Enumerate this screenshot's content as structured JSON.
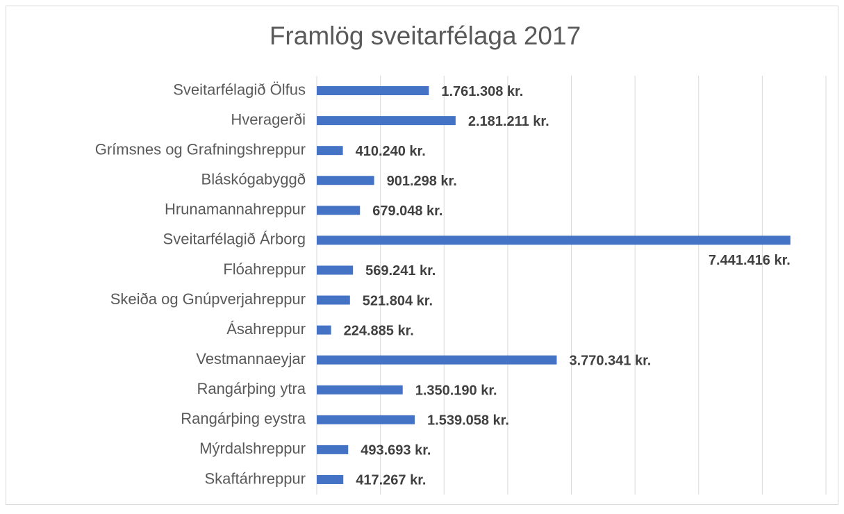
{
  "chart_data": {
    "type": "bar",
    "orientation": "horizontal",
    "title": "Framlög sveitarfélaga 2017",
    "categories": [
      "Sveitarfélagið Ölfus",
      "Hveragerði",
      "Grímsnes og Grafningshreppur",
      "Bláskógabyggð",
      "Hrunamannahreppur",
      "Sveitarfélagið Árborg",
      "Flóahreppur",
      "Skeiða og Gnúpverjahreppur",
      "Ásahreppur",
      "Vestmannaeyjar",
      "Rangárþing ytra",
      "Rangárþing eystra",
      "Mýrdalshreppur",
      "Skaftárhreppur"
    ],
    "values": [
      1761308,
      2181211,
      410240,
      901298,
      679048,
      7441416,
      569241,
      521804,
      224885,
      3770341,
      1350190,
      1539058,
      493693,
      417267
    ],
    "value_labels": [
      "1.761.308 kr.",
      "2.181.211 kr.",
      "410.240 kr.",
      "901.298 kr.",
      "679.048 kr.",
      "7.441.416 kr.",
      "569.241 kr.",
      "521.804 kr.",
      "224.885 kr.",
      "3.770.341 kr.",
      "1.350.190 kr.",
      "1.539.058 kr.",
      "493.693 kr.",
      "417.267 kr."
    ],
    "color": "#4472c4",
    "xlim": [
      0,
      8000000
    ],
    "xticks": [
      0,
      1000000,
      2000000,
      3000000,
      4000000,
      5000000,
      6000000,
      7000000,
      8000000
    ],
    "grid": true
  }
}
